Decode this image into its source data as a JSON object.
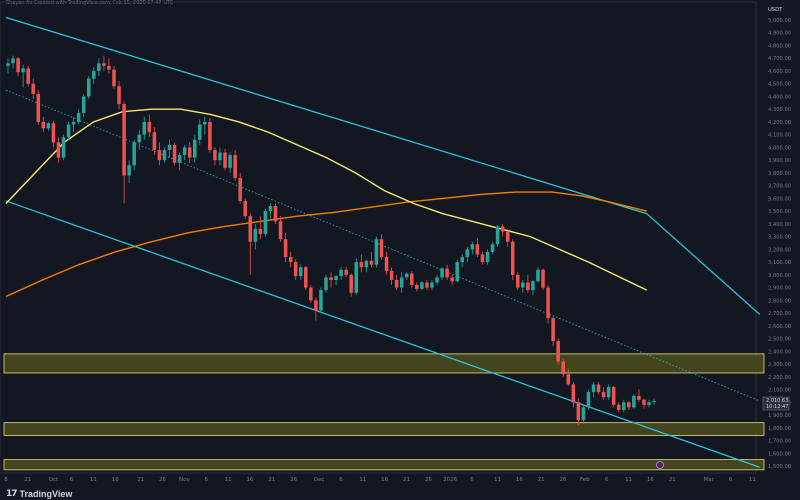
{
  "header": {
    "caption": "Shayan fhi Crossed with TradingView.com, Feb 15, 2026 07:47 UTC"
  },
  "branding": {
    "mark": "17",
    "name": "TradingView"
  },
  "colors": {
    "background": "#131722",
    "up": "#26a69a",
    "down": "#ef5350",
    "channel": "#26c6da",
    "midline": "#26c6da",
    "ma_fast": "#f5ea6b",
    "ma_slow": "#f57c00",
    "zone_fill": "#55561f",
    "zone_border": "#e8e07a",
    "axis_text": "#787b86"
  },
  "chart_data": {
    "type": "candlestick",
    "symbol_unit": "USDT",
    "y_axis": {
      "labels": [
        "5,000.00",
        "4,900.00",
        "4,800.00",
        "4,700.00",
        "4,600.00",
        "4,500.00",
        "4,400.00",
        "4,300.00",
        "4,200.00",
        "4,100.00",
        "4,000.00",
        "3,900.00",
        "3,800.00",
        "3,700.00",
        "3,600.00",
        "3,500.00",
        "3,400.00",
        "3,300.00",
        "3,200.00",
        "3,100.00",
        "3,000.00",
        "2,900.00",
        "2,800.00",
        "2,700.00",
        "2,600.00",
        "2,500.00",
        "2,400.00",
        "2,300.00",
        "2,200.00",
        "2,100.00",
        "2,000.00",
        "1,900.00",
        "1,800.00",
        "1,700.00",
        "1,600.00",
        "1,500.00"
      ],
      "ylim": [
        1460,
        5100
      ]
    },
    "x_axis": {
      "labels": [
        {
          "day": 0,
          "text": "8"
        },
        {
          "day": 6,
          "text": "21"
        },
        {
          "day": 13,
          "text": "Oct"
        },
        {
          "day": 18,
          "text": "6"
        },
        {
          "day": 24,
          "text": "11"
        },
        {
          "day": 30,
          "text": "16"
        },
        {
          "day": 37,
          "text": "21"
        },
        {
          "day": 43,
          "text": "26"
        },
        {
          "day": 49,
          "text": "Nov"
        },
        {
          "day": 55,
          "text": "6"
        },
        {
          "day": 61,
          "text": "11"
        },
        {
          "day": 67,
          "text": "16"
        },
        {
          "day": 73,
          "text": "21"
        },
        {
          "day": 79,
          "text": "26"
        },
        {
          "day": 86,
          "text": "Dec"
        },
        {
          "day": 92,
          "text": "6"
        },
        {
          "day": 98,
          "text": "11"
        },
        {
          "day": 104,
          "text": "16"
        },
        {
          "day": 110,
          "text": "21"
        },
        {
          "day": 116,
          "text": "26"
        },
        {
          "day": 122,
          "text": "2026"
        },
        {
          "day": 128,
          "text": "6"
        },
        {
          "day": 135,
          "text": "11"
        },
        {
          "day": 141,
          "text": "16"
        },
        {
          "day": 147,
          "text": "21"
        },
        {
          "day": 153,
          "text": "26"
        },
        {
          "day": 159,
          "text": "Feb"
        },
        {
          "day": 165,
          "text": "6"
        },
        {
          "day": 171,
          "text": "11"
        },
        {
          "day": 177,
          "text": "16"
        },
        {
          "day": 183,
          "text": "21"
        },
        {
          "day": 193,
          "text": "Mar"
        },
        {
          "day": 199,
          "text": "6"
        },
        {
          "day": 205,
          "text": "11"
        }
      ]
    },
    "price_labels": [
      {
        "text": "2,010.63",
        "price": 2010
      },
      {
        "text": "10:12:47",
        "price": 1955
      }
    ],
    "candles": [
      [
        4640,
        4700,
        4580,
        4660
      ],
      [
        4660,
        4720,
        4620,
        4700
      ],
      [
        4700,
        4710,
        4560,
        4590
      ],
      [
        4590,
        4650,
        4470,
        4620
      ],
      [
        4620,
        4640,
        4480,
        4500
      ],
      [
        4500,
        4540,
        4380,
        4420
      ],
      [
        4420,
        4450,
        4180,
        4200
      ],
      [
        4200,
        4240,
        4120,
        4150
      ],
      [
        4150,
        4200,
        4130,
        4190
      ],
      [
        4190,
        4210,
        4000,
        4040
      ],
      [
        4040,
        4080,
        3880,
        3920
      ],
      [
        3920,
        4100,
        3900,
        4080
      ],
      [
        4080,
        4200,
        4060,
        4180
      ],
      [
        4180,
        4240,
        4120,
        4200
      ],
      [
        4200,
        4300,
        4180,
        4270
      ],
      [
        4270,
        4420,
        4240,
        4400
      ],
      [
        4400,
        4560,
        4380,
        4540
      ],
      [
        4540,
        4630,
        4500,
        4600
      ],
      [
        4600,
        4700,
        4560,
        4660
      ],
      [
        4660,
        4720,
        4600,
        4640
      ],
      [
        4640,
        4700,
        4580,
        4610
      ],
      [
        4610,
        4640,
        4460,
        4480
      ],
      [
        4480,
        4520,
        4300,
        4340
      ],
      [
        4340,
        4360,
        3560,
        3780
      ],
      [
        3780,
        3900,
        3720,
        3860
      ],
      [
        3860,
        4060,
        3820,
        4040
      ],
      [
        4040,
        4140,
        3980,
        4100
      ],
      [
        4100,
        4240,
        4060,
        4200
      ],
      [
        4200,
        4260,
        4080,
        4120
      ],
      [
        4120,
        4160,
        3940,
        3980
      ],
      [
        3980,
        4040,
        3860,
        3900
      ],
      [
        3900,
        4000,
        3880,
        3980
      ],
      [
        3980,
        4060,
        3920,
        4020
      ],
      [
        4020,
        4040,
        3860,
        3880
      ],
      [
        3880,
        3960,
        3820,
        3940
      ],
      [
        3940,
        4020,
        3900,
        4000
      ],
      [
        4000,
        4040,
        3880,
        3920
      ],
      [
        3920,
        4100,
        3880,
        4060
      ],
      [
        4060,
        4220,
        4020,
        4180
      ],
      [
        4180,
        4240,
        4100,
        4200
      ],
      [
        4200,
        4230,
        3960,
        3980
      ],
      [
        3980,
        4000,
        3860,
        3900
      ],
      [
        3900,
        4000,
        3860,
        3960
      ],
      [
        3960,
        3990,
        3820,
        3840
      ],
      [
        3840,
        3960,
        3800,
        3940
      ],
      [
        3940,
        3980,
        3740,
        3760
      ],
      [
        3760,
        3800,
        3560,
        3580
      ],
      [
        3580,
        3600,
        3440,
        3460
      ],
      [
        3460,
        3480,
        3000,
        3260
      ],
      [
        3260,
        3400,
        3200,
        3360
      ],
      [
        3360,
        3460,
        3280,
        3320
      ],
      [
        3320,
        3520,
        3300,
        3500
      ],
      [
        3500,
        3560,
        3440,
        3540
      ],
      [
        3540,
        3560,
        3400,
        3420
      ],
      [
        3420,
        3460,
        3260,
        3280
      ],
      [
        3280,
        3330,
        3100,
        3140
      ],
      [
        3140,
        3180,
        3060,
        3100
      ],
      [
        3100,
        3120,
        2960,
        2990
      ],
      [
        2990,
        3080,
        2960,
        3060
      ],
      [
        3060,
        3070,
        2880,
        2900
      ],
      [
        2900,
        2920,
        2780,
        2800
      ],
      [
        2800,
        2820,
        2640,
        2720
      ],
      [
        2720,
        2900,
        2700,
        2880
      ],
      [
        2880,
        3000,
        2860,
        2980
      ],
      [
        2980,
        3020,
        2900,
        2960
      ],
      [
        2960,
        3000,
        2920,
        2990
      ],
      [
        2990,
        3060,
        2960,
        3040
      ],
      [
        3040,
        3060,
        2980,
        3000
      ],
      [
        3000,
        3010,
        2830,
        2860
      ],
      [
        2860,
        3130,
        2840,
        3100
      ],
      [
        3100,
        3160,
        3020,
        3060
      ],
      [
        3060,
        3120,
        3020,
        3110
      ],
      [
        3110,
        3180,
        3060,
        3080
      ],
      [
        3080,
        3300,
        3060,
        3280
      ],
      [
        3280,
        3320,
        3120,
        3140
      ],
      [
        3140,
        3180,
        3000,
        3030
      ],
      [
        3030,
        3060,
        2920,
        2960
      ],
      [
        2960,
        3000,
        2880,
        2900
      ],
      [
        2900,
        3020,
        2860,
        2980
      ],
      [
        2980,
        3020,
        2960,
        3010
      ],
      [
        3010,
        3030,
        2900,
        2920
      ],
      [
        2920,
        2940,
        2870,
        2890
      ],
      [
        2890,
        2950,
        2880,
        2940
      ],
      [
        2940,
        2960,
        2880,
        2900
      ],
      [
        2900,
        2960,
        2880,
        2940
      ],
      [
        2940,
        3000,
        2920,
        2980
      ],
      [
        2980,
        3060,
        2960,
        3050
      ],
      [
        3050,
        3080,
        2960,
        2980
      ],
      [
        2980,
        3000,
        2920,
        2950
      ],
      [
        2950,
        3120,
        2940,
        3100
      ],
      [
        3100,
        3160,
        3060,
        3140
      ],
      [
        3140,
        3220,
        3100,
        3200
      ],
      [
        3200,
        3260,
        3160,
        3240
      ],
      [
        3240,
        3290,
        3140,
        3160
      ],
      [
        3160,
        3180,
        3080,
        3100
      ],
      [
        3100,
        3200,
        3080,
        3180
      ],
      [
        3180,
        3260,
        3160,
        3240
      ],
      [
        3240,
        3390,
        3220,
        3380
      ],
      [
        3380,
        3400,
        3300,
        3340
      ],
      [
        3340,
        3360,
        3220,
        3260
      ],
      [
        3260,
        3280,
        2960,
        3000
      ],
      [
        3000,
        3020,
        2880,
        2900
      ],
      [
        2900,
        2960,
        2860,
        2940
      ],
      [
        2940,
        3000,
        2860,
        2880
      ],
      [
        2880,
        2960,
        2840,
        2950
      ],
      [
        2950,
        3060,
        2940,
        3040
      ],
      [
        3040,
        3050,
        2880,
        2900
      ],
      [
        2900,
        2920,
        2620,
        2660
      ],
      [
        2660,
        2680,
        2440,
        2480
      ],
      [
        2480,
        2500,
        2300,
        2320
      ],
      [
        2320,
        2340,
        2200,
        2220
      ],
      [
        2220,
        2260,
        2130,
        2140
      ],
      [
        2140,
        2160,
        1960,
        2000
      ],
      [
        2000,
        2030,
        1820,
        1860
      ],
      [
        1860,
        1980,
        1830,
        1960
      ],
      [
        1960,
        2100,
        1940,
        2080
      ],
      [
        2080,
        2160,
        2040,
        2140
      ],
      [
        2140,
        2160,
        2060,
        2080
      ],
      [
        2080,
        2120,
        2020,
        2040
      ],
      [
        2040,
        2140,
        2020,
        2120
      ],
      [
        2120,
        2130,
        1960,
        1980
      ],
      [
        1980,
        2000,
        1920,
        1940
      ],
      [
        1940,
        2020,
        1920,
        2000
      ],
      [
        2000,
        2010,
        1940,
        1960
      ],
      [
        1960,
        2060,
        1950,
        2050
      ],
      [
        2050,
        2100,
        2000,
        2020
      ],
      [
        2020,
        2030,
        1950,
        1980
      ],
      [
        1980,
        2020,
        1960,
        2000
      ],
      [
        2000,
        2030,
        1980,
        2010
      ]
    ],
    "ma_fast": [
      [
        0,
        3560
      ],
      [
        8,
        3800
      ],
      [
        16,
        4040
      ],
      [
        24,
        4200
      ],
      [
        32,
        4280
      ],
      [
        40,
        4300
      ],
      [
        48,
        4300
      ],
      [
        56,
        4260
      ],
      [
        64,
        4200
      ],
      [
        72,
        4120
      ],
      [
        80,
        4020
      ],
      [
        88,
        3920
      ],
      [
        96,
        3800
      ],
      [
        104,
        3660
      ],
      [
        112,
        3560
      ],
      [
        120,
        3480
      ],
      [
        128,
        3420
      ],
      [
        136,
        3360
      ],
      [
        144,
        3300
      ],
      [
        152,
        3200
      ],
      [
        160,
        3100
      ],
      [
        168,
        2990
      ],
      [
        176,
        2880
      ]
    ],
    "ma_slow": [
      [
        0,
        2830
      ],
      [
        10,
        2960
      ],
      [
        20,
        3080
      ],
      [
        30,
        3180
      ],
      [
        40,
        3260
      ],
      [
        50,
        3330
      ],
      [
        60,
        3380
      ],
      [
        70,
        3420
      ],
      [
        80,
        3460
      ],
      [
        90,
        3490
      ],
      [
        100,
        3530
      ],
      [
        110,
        3570
      ],
      [
        120,
        3600
      ],
      [
        130,
        3630
      ],
      [
        140,
        3650
      ],
      [
        150,
        3650
      ],
      [
        158,
        3620
      ],
      [
        166,
        3570
      ],
      [
        176,
        3500
      ]
    ],
    "channel_upper": [
      [
        0,
        5020
      ],
      [
        176,
        3480
      ],
      [
        207,
        2690
      ]
    ],
    "channel_mid": [
      [
        0,
        4450
      ],
      [
        207,
        2010
      ]
    ],
    "channel_lower": [
      [
        0,
        3580
      ],
      [
        207,
        1490
      ]
    ],
    "zones": [
      {
        "from": 2230,
        "to": 2380
      },
      {
        "from": 1740,
        "to": 1840
      },
      {
        "from": 1470,
        "to": 1550
      }
    ],
    "x_range_days": [
      0,
      206
    ]
  }
}
